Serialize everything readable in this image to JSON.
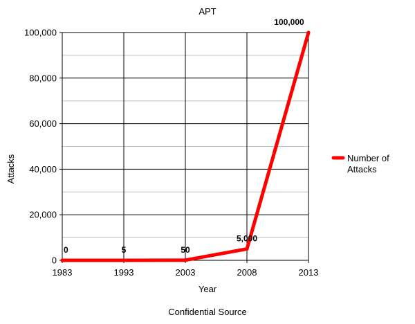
{
  "chart_data": {
    "type": "line",
    "title": "APT",
    "xlabel": "Year",
    "ylabel": "Attacks",
    "categories": [
      "1983",
      "1993",
      "2003",
      "2008",
      "2013"
    ],
    "series": [
      {
        "name": "Number of Attacks",
        "values": [
          0,
          5,
          50,
          5000,
          100000
        ],
        "labels": [
          "0",
          "5",
          "50",
          "5,000",
          "100,000"
        ],
        "color": "#ff0000"
      }
    ],
    "ylim": [
      0,
      100000
    ],
    "yticks": [
      0,
      20000,
      40000,
      60000,
      80000,
      100000
    ],
    "ytick_labels": [
      "0",
      "20,000",
      "40,000",
      "60,000",
      "80,000",
      "100,000"
    ],
    "grid": true,
    "legend": "right"
  },
  "footer": {
    "source": "Confidential Source"
  }
}
